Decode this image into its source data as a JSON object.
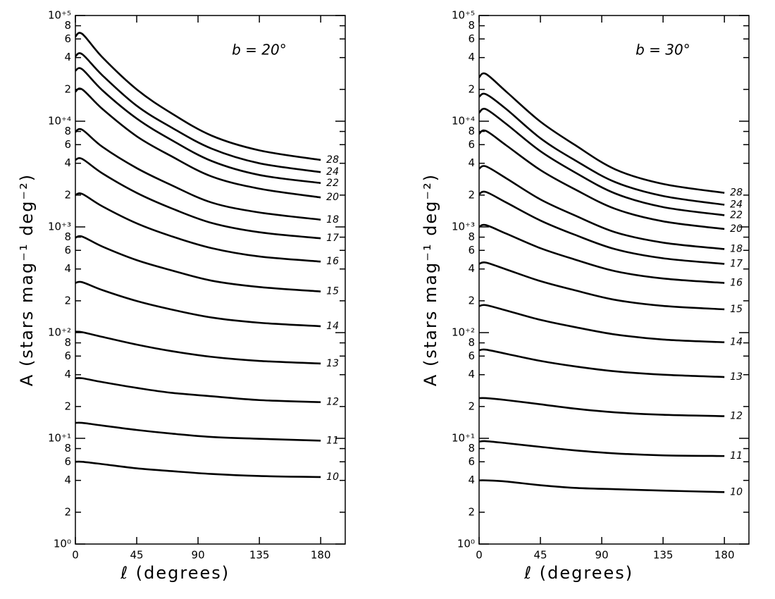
{
  "chart_data": [
    {
      "type": "line",
      "annotation": "b = 20°",
      "x_label": "ℓ (degrees)",
      "y_label": "A (stars mag⁻¹ deg⁻²)",
      "log_y": true,
      "xlim": [
        0,
        198
      ],
      "ylim": [
        1,
        100000
      ],
      "xticks": [
        0,
        45,
        90,
        135,
        180
      ],
      "yticks": [
        {
          "value": 1,
          "label": "10⁰"
        },
        2,
        4,
        6,
        8,
        {
          "value": 10,
          "label": "10⁺¹"
        },
        {
          "value": 20,
          "label": "2"
        },
        {
          "value": 40,
          "label": "4"
        },
        {
          "value": 60,
          "label": "6"
        },
        {
          "value": 80,
          "label": "8"
        },
        {
          "value": 100,
          "label": "10⁺²"
        },
        {
          "value": 200,
          "label": "2"
        },
        {
          "value": 400,
          "label": "4"
        },
        {
          "value": 600,
          "label": "6"
        },
        {
          "value": 800,
          "label": "8"
        },
        {
          "value": 1000,
          "label": "10⁺³"
        },
        {
          "value": 2000,
          "label": "2"
        },
        {
          "value": 4000,
          "label": "4"
        },
        {
          "value": 6000,
          "label": "6"
        },
        {
          "value": 8000,
          "label": "8"
        },
        {
          "value": 10000,
          "label": "10⁺⁴"
        },
        {
          "value": 20000,
          "label": "2"
        },
        {
          "value": 40000,
          "label": "4"
        },
        {
          "value": 60000,
          "label": "6"
        },
        {
          "value": 80000,
          "label": "8"
        },
        {
          "value": 100000,
          "label": "10⁺⁵"
        }
      ],
      "x": [
        0,
        5,
        20,
        45,
        70,
        100,
        135,
        180
      ],
      "series": [
        {
          "name": "28",
          "color": "#000000",
          "values": [
            63000,
            67000,
            40000,
            20000,
            12000,
            7300,
            5300,
            4300
          ]
        },
        {
          "name": "24",
          "color": "#000000",
          "values": [
            41000,
            43000,
            27000,
            14000,
            8800,
            5500,
            4000,
            3300
          ]
        },
        {
          "name": "22",
          "color": "#000000",
          "values": [
            30000,
            31000,
            19500,
            10600,
            6700,
            4200,
            3100,
            2600
          ]
        },
        {
          "name": "20",
          "color": "#000000",
          "values": [
            19000,
            20000,
            13000,
            7200,
            4700,
            3000,
            2300,
            1900
          ]
        },
        {
          "name": "18",
          "color": "#000000",
          "values": [
            7900,
            8300,
            5700,
            3600,
            2500,
            1700,
            1370,
            1170
          ]
        },
        {
          "name": "17",
          "color": "#000000",
          "values": [
            4300,
            4400,
            3200,
            2100,
            1510,
            1090,
            890,
            780
          ]
        },
        {
          "name": "16",
          "color": "#000000",
          "values": [
            2000,
            2050,
            1560,
            1080,
            820,
            630,
            525,
            470
          ]
        },
        {
          "name": "15",
          "color": "#000000",
          "values": [
            790,
            810,
            650,
            485,
            390,
            310,
            270,
            245
          ]
        },
        {
          "name": "14",
          "color": "#000000",
          "values": [
            295,
            300,
            252,
            199,
            166,
            139,
            124,
            115
          ]
        },
        {
          "name": "13",
          "color": "#000000",
          "values": [
            102,
            101,
            91,
            77,
            67,
            59,
            54,
            51
          ]
        },
        {
          "name": "12",
          "color": "#000000",
          "values": [
            37,
            37,
            34,
            30,
            27,
            25,
            23,
            22
          ]
        },
        {
          "name": "11",
          "color": "#000000",
          "values": [
            14,
            14,
            13.2,
            12,
            11.1,
            10.3,
            9.9,
            9.5
          ]
        },
        {
          "name": "10",
          "color": "#000000",
          "values": [
            6.0,
            6.0,
            5.7,
            5.2,
            4.9,
            4.6,
            4.4,
            4.3
          ]
        }
      ]
    },
    {
      "type": "line",
      "annotation": "b = 30°",
      "x_label": "ℓ (degrees)",
      "y_label": "A (stars mag⁻¹ deg⁻²)",
      "log_y": true,
      "xlim": [
        0,
        198
      ],
      "ylim": [
        1,
        100000
      ],
      "xticks": [
        0,
        45,
        90,
        135,
        180
      ],
      "yticks": [
        {
          "value": 1,
          "label": "10⁰"
        },
        2,
        4,
        6,
        8,
        {
          "value": 10,
          "label": "10⁺¹"
        },
        {
          "value": 20,
          "label": "2"
        },
        {
          "value": 40,
          "label": "4"
        },
        {
          "value": 60,
          "label": "6"
        },
        {
          "value": 80,
          "label": "8"
        },
        {
          "value": 100,
          "label": "10⁺²"
        },
        {
          "value": 200,
          "label": "2"
        },
        {
          "value": 400,
          "label": "4"
        },
        {
          "value": 600,
          "label": "6"
        },
        {
          "value": 800,
          "label": "8"
        },
        {
          "value": 1000,
          "label": "10⁺³"
        },
        {
          "value": 2000,
          "label": "2"
        },
        {
          "value": 4000,
          "label": "4"
        },
        {
          "value": 6000,
          "label": "6"
        },
        {
          "value": 8000,
          "label": "8"
        },
        {
          "value": 10000,
          "label": "10⁺⁴"
        },
        {
          "value": 20000,
          "label": "2"
        },
        {
          "value": 40000,
          "label": "4"
        },
        {
          "value": 60000,
          "label": "6"
        },
        {
          "value": 80000,
          "label": "8"
        },
        {
          "value": 100000,
          "label": "10⁺⁵"
        }
      ],
      "x": [
        0,
        5,
        20,
        45,
        70,
        100,
        135,
        180
      ],
      "series": [
        {
          "name": "28",
          "color": "#000000",
          "values": [
            26000,
            28000,
            19000,
            9900,
            6000,
            3500,
            2550,
            2100
          ]
        },
        {
          "name": "24",
          "color": "#000000",
          "values": [
            17000,
            18000,
            13000,
            6900,
            4300,
            2650,
            1960,
            1620
          ]
        },
        {
          "name": "22",
          "color": "#000000",
          "values": [
            12000,
            13000,
            9400,
            5200,
            3300,
            2070,
            1540,
            1290
          ]
        },
        {
          "name": "20",
          "color": "#000000",
          "values": [
            7600,
            8100,
            5900,
            3450,
            2280,
            1480,
            1130,
            955
          ]
        },
        {
          "name": "18",
          "color": "#000000",
          "values": [
            3550,
            3740,
            2880,
            1820,
            1290,
            890,
            710,
            617
          ]
        },
        {
          "name": "17",
          "color": "#000000",
          "values": [
            2040,
            2140,
            1700,
            1150,
            845,
            615,
            505,
            447
          ]
        },
        {
          "name": "16",
          "color": "#000000",
          "values": [
            1000,
            1040,
            863,
            629,
            493,
            381,
            325,
            295
          ]
        },
        {
          "name": "15",
          "color": "#000000",
          "values": [
            447,
            460,
            396,
            307,
            252,
            204,
            179,
            166
          ]
        },
        {
          "name": "14",
          "color": "#000000",
          "values": [
            178,
            182,
            162,
            132,
            113,
            96,
            86,
            81
          ]
        },
        {
          "name": "13",
          "color": "#000000",
          "values": [
            68,
            69,
            63,
            54,
            48,
            43,
            40,
            38
          ]
        },
        {
          "name": "12",
          "color": "#000000",
          "values": [
            24,
            24,
            23,
            21,
            19.1,
            17.6,
            16.7,
            16.2
          ]
        },
        {
          "name": "11",
          "color": "#000000",
          "values": [
            9.3,
            9.4,
            9.0,
            8.3,
            7.7,
            7.2,
            6.9,
            6.8
          ]
        },
        {
          "name": "10",
          "color": "#000000",
          "values": [
            4.0,
            4.0,
            3.9,
            3.6,
            3.4,
            3.3,
            3.2,
            3.1
          ]
        }
      ]
    }
  ]
}
